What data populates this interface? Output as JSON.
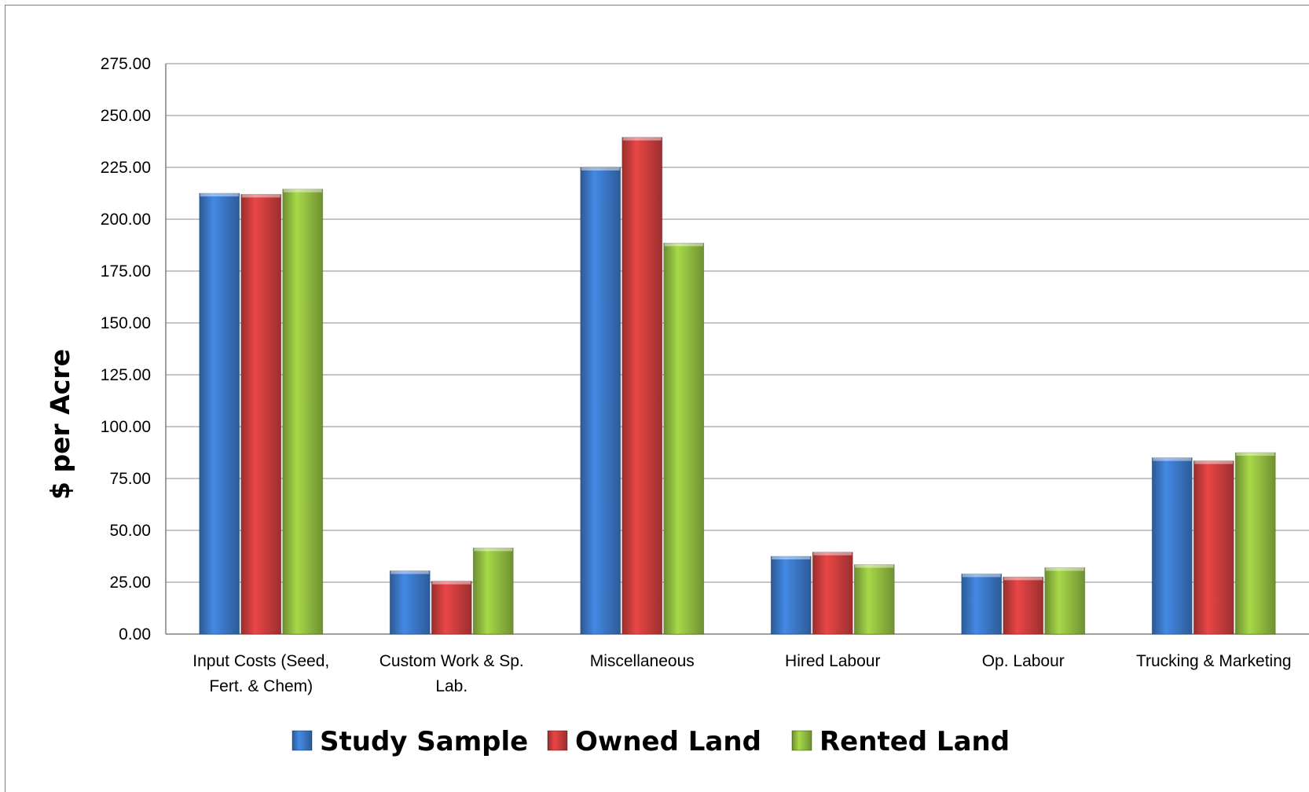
{
  "chart_data": {
    "type": "bar",
    "title": "",
    "xlabel": "",
    "ylabel": "$ per Acre",
    "ylim": [
      0,
      275
    ],
    "ytick_step": 25,
    "ytick_labels": [
      "0.00",
      "25.00",
      "50.00",
      "75.00",
      "100.00",
      "125.00",
      "150.00",
      "175.00",
      "200.00",
      "225.00",
      "250.00",
      "275.00"
    ],
    "grid": "horizontal",
    "legend_position": "bottom",
    "categories": [
      [
        "Input Costs (Seed,",
        "Fert. & Chem)"
      ],
      [
        "Custom Work & Sp.",
        "Lab."
      ],
      [
        "Miscellaneous"
      ],
      [
        "Hired Labour"
      ],
      [
        "Op. Labour"
      ],
      [
        "Trucking & Marketing"
      ]
    ],
    "series": [
      {
        "name": "Study Sample",
        "color": "#3f7fd3",
        "values": [
          212.5,
          30.5,
          225.0,
          37.5,
          29.0,
          85.0
        ]
      },
      {
        "name": "Owned Land",
        "color": "#d94141",
        "values": [
          212.0,
          25.5,
          239.5,
          39.5,
          27.5,
          83.5
        ]
      },
      {
        "name": "Rented Land",
        "color": "#9bc944",
        "values": [
          214.5,
          41.5,
          188.5,
          33.5,
          32.0,
          87.5
        ]
      }
    ]
  }
}
